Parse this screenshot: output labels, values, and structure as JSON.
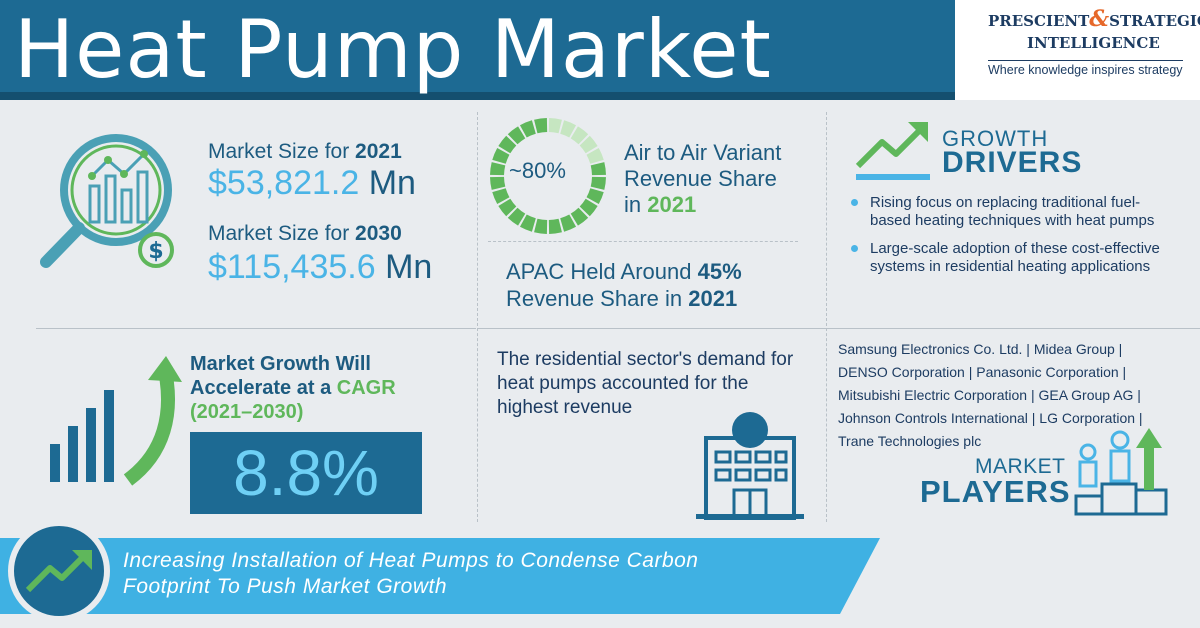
{
  "header": {
    "title": "Heat Pump Market",
    "logo_line1_a": "PRESCIENT",
    "logo_amp": "&",
    "logo_line1_b": "STRATEGIC",
    "logo_line2": "INTELLIGENCE",
    "logo_tagline": "Where knowledge inspires strategy"
  },
  "market_size": {
    "label_2021_prefix": "Market Size for ",
    "year_2021": "2021",
    "value_2021_num": "$53,821.2",
    "value_2021_unit": "Mn",
    "label_2030_prefix": "Market Size for ",
    "year_2030": "2030",
    "value_2030_num": "$115,435.6",
    "value_2030_unit": "Mn"
  },
  "air_to_air": {
    "ring_value": "~80%",
    "ring_fill_fraction": 0.8,
    "line1": "Air to Air Variant",
    "line2": "Revenue Share",
    "line3_prefix": "in ",
    "year": "2021"
  },
  "apac": {
    "line1_prefix": "APAC Held Around ",
    "percent": "45%",
    "line2_prefix": "Revenue Share in ",
    "year": "2021"
  },
  "growth_drivers": {
    "title_top": "GROWTH",
    "title_bottom": "DRIVERS",
    "items": [
      "Rising focus on replacing traditional fuel-based heating techniques with heat pumps",
      "Large-scale adoption of these cost-effective systems in residential heating applications"
    ]
  },
  "cagr": {
    "line1": "Market Growth Will",
    "line2_prefix": "Accelerate at a ",
    "line2_highlight": "CAGR",
    "line3": "(2021–2030)",
    "value": "8.8%"
  },
  "residential": {
    "text": "The residential sector's demand for heat pumps accounted for the highest revenue"
  },
  "players": {
    "lines": [
      "Samsung Electronics Co. Ltd. | Midea Group |",
      "DENSO Corporation | Panasonic Corporation |",
      "Mitsubishi Electric Corporation | GEA Group AG |",
      "Johnson Controls International | LG Corporation |",
      "Trane Technologies plc"
    ],
    "title_top": "MARKET",
    "title_bottom": "PLAYERS"
  },
  "banner": {
    "line1": "Increasing Installation of Heat Pumps to Condense Carbon",
    "line2": "Footprint To Push Market Growth"
  },
  "colors": {
    "primary": "#1d6a93",
    "accent_blue": "#4ab4e6",
    "accent_green": "#5fb75b",
    "banner": "#3fb1e3"
  }
}
